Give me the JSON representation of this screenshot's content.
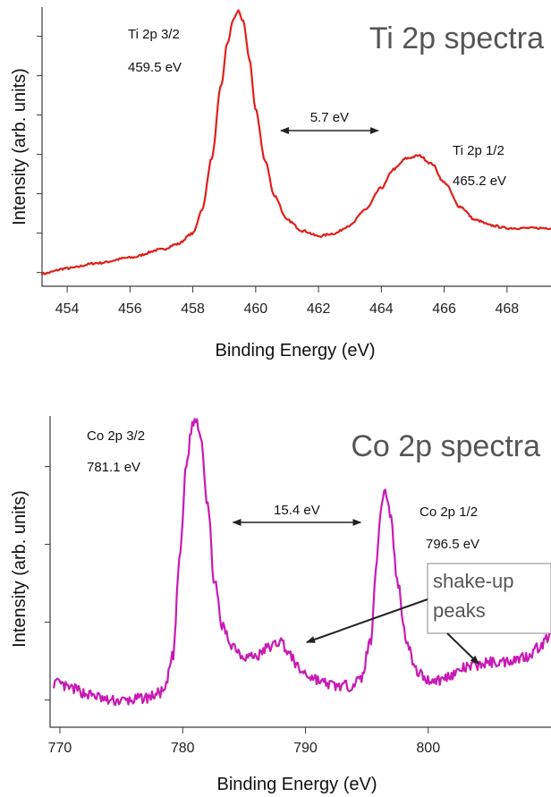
{
  "chart_data": [
    {
      "type": "line",
      "title": "Ti 2p spectra",
      "xlabel": "Binding Energy (eV)",
      "ylabel": "Intensity (arb. units)",
      "xlim": [
        453.2,
        469.4
      ],
      "ylim": [
        0,
        1
      ],
      "x_ticks": [
        454,
        456,
        458,
        460,
        462,
        464,
        466,
        468
      ],
      "x_tick_labels": [
        "454",
        "456",
        "458",
        "460",
        "462",
        "464",
        "466",
        "468"
      ],
      "y_ticks_count": 7,
      "color": "#e0201a",
      "series": [
        {
          "name": "",
          "x": [
            453.2,
            454.0,
            455.0,
            456.0,
            457.0,
            457.5,
            458.0,
            458.3,
            458.6,
            458.9,
            459.1,
            459.3,
            459.45,
            459.6,
            459.8,
            460.0,
            460.3,
            460.6,
            461.0,
            461.5,
            462.0,
            462.5,
            463.0,
            463.5,
            464.0,
            464.4,
            464.8,
            465.2,
            465.6,
            466.0,
            466.5,
            467.0,
            467.5,
            468.0,
            468.5,
            469.0,
            469.4
          ],
          "y": [
            0.02,
            0.04,
            0.06,
            0.08,
            0.11,
            0.13,
            0.17,
            0.26,
            0.45,
            0.72,
            0.88,
            0.97,
            1.0,
            0.96,
            0.82,
            0.63,
            0.44,
            0.31,
            0.22,
            0.18,
            0.16,
            0.17,
            0.2,
            0.26,
            0.34,
            0.41,
            0.45,
            0.46,
            0.43,
            0.36,
            0.27,
            0.22,
            0.2,
            0.19,
            0.19,
            0.19,
            0.19
          ]
        }
      ],
      "annotations": {
        "peak1_name": "Ti 2p 3/2",
        "peak1_energy": "459.5 eV",
        "peak2_name": "Ti 2p 1/2",
        "peak2_energy": "465.2 eV",
        "separation": "5.7 eV",
        "separation_range": [
          460.8,
          463.9
        ]
      }
    },
    {
      "type": "line",
      "title": "Co 2p spectra",
      "xlabel": "Binding Energy (eV)",
      "ylabel": "Intensity (arb. units)",
      "xlim": [
        769.2,
        810
      ],
      "ylim": [
        0,
        1
      ],
      "x_ticks": [
        770,
        780,
        790,
        800
      ],
      "x_tick_labels": [
        "770",
        "780",
        "790",
        "800"
      ],
      "y_ticks_count": 4,
      "color": "#c81ab4",
      "series": [
        {
          "name": "",
          "x": [
            769.5,
            771,
            772.5,
            774,
            775.5,
            777,
            778.5,
            779.2,
            779.8,
            780.3,
            780.8,
            781.1,
            781.5,
            782.0,
            782.6,
            783.2,
            784.0,
            785.0,
            786.0,
            787.0,
            788.0,
            788.8,
            789.6,
            790.5,
            791.5,
            792.5,
            793.5,
            794.5,
            795.3,
            795.8,
            796.2,
            796.5,
            796.9,
            797.5,
            798.2,
            799.0,
            800.0,
            801.0,
            802.0,
            803.0,
            804.0,
            805.0,
            806.0,
            807.0,
            808.0,
            809.0,
            810.0
          ],
          "y": [
            0.11,
            0.09,
            0.07,
            0.05,
            0.05,
            0.06,
            0.08,
            0.2,
            0.55,
            0.85,
            0.98,
            1.0,
            0.94,
            0.72,
            0.45,
            0.3,
            0.24,
            0.2,
            0.2,
            0.23,
            0.25,
            0.2,
            0.15,
            0.13,
            0.11,
            0.1,
            0.1,
            0.12,
            0.25,
            0.52,
            0.72,
            0.76,
            0.68,
            0.45,
            0.26,
            0.15,
            0.12,
            0.12,
            0.14,
            0.16,
            0.17,
            0.18,
            0.18,
            0.19,
            0.2,
            0.23,
            0.27
          ]
        }
      ],
      "annotations": {
        "peak1_name": "Co 2p 3/2",
        "peak1_energy": "781.1 eV",
        "peak2_name": "Co 2p 1/2",
        "peak2_energy": "796.5 eV",
        "separation": "15.4 eV",
        "separation_range": [
          784.1,
          794.5
        ],
        "shakeup_line1": "shake-up",
        "shakeup_line2": "peaks"
      }
    }
  ]
}
